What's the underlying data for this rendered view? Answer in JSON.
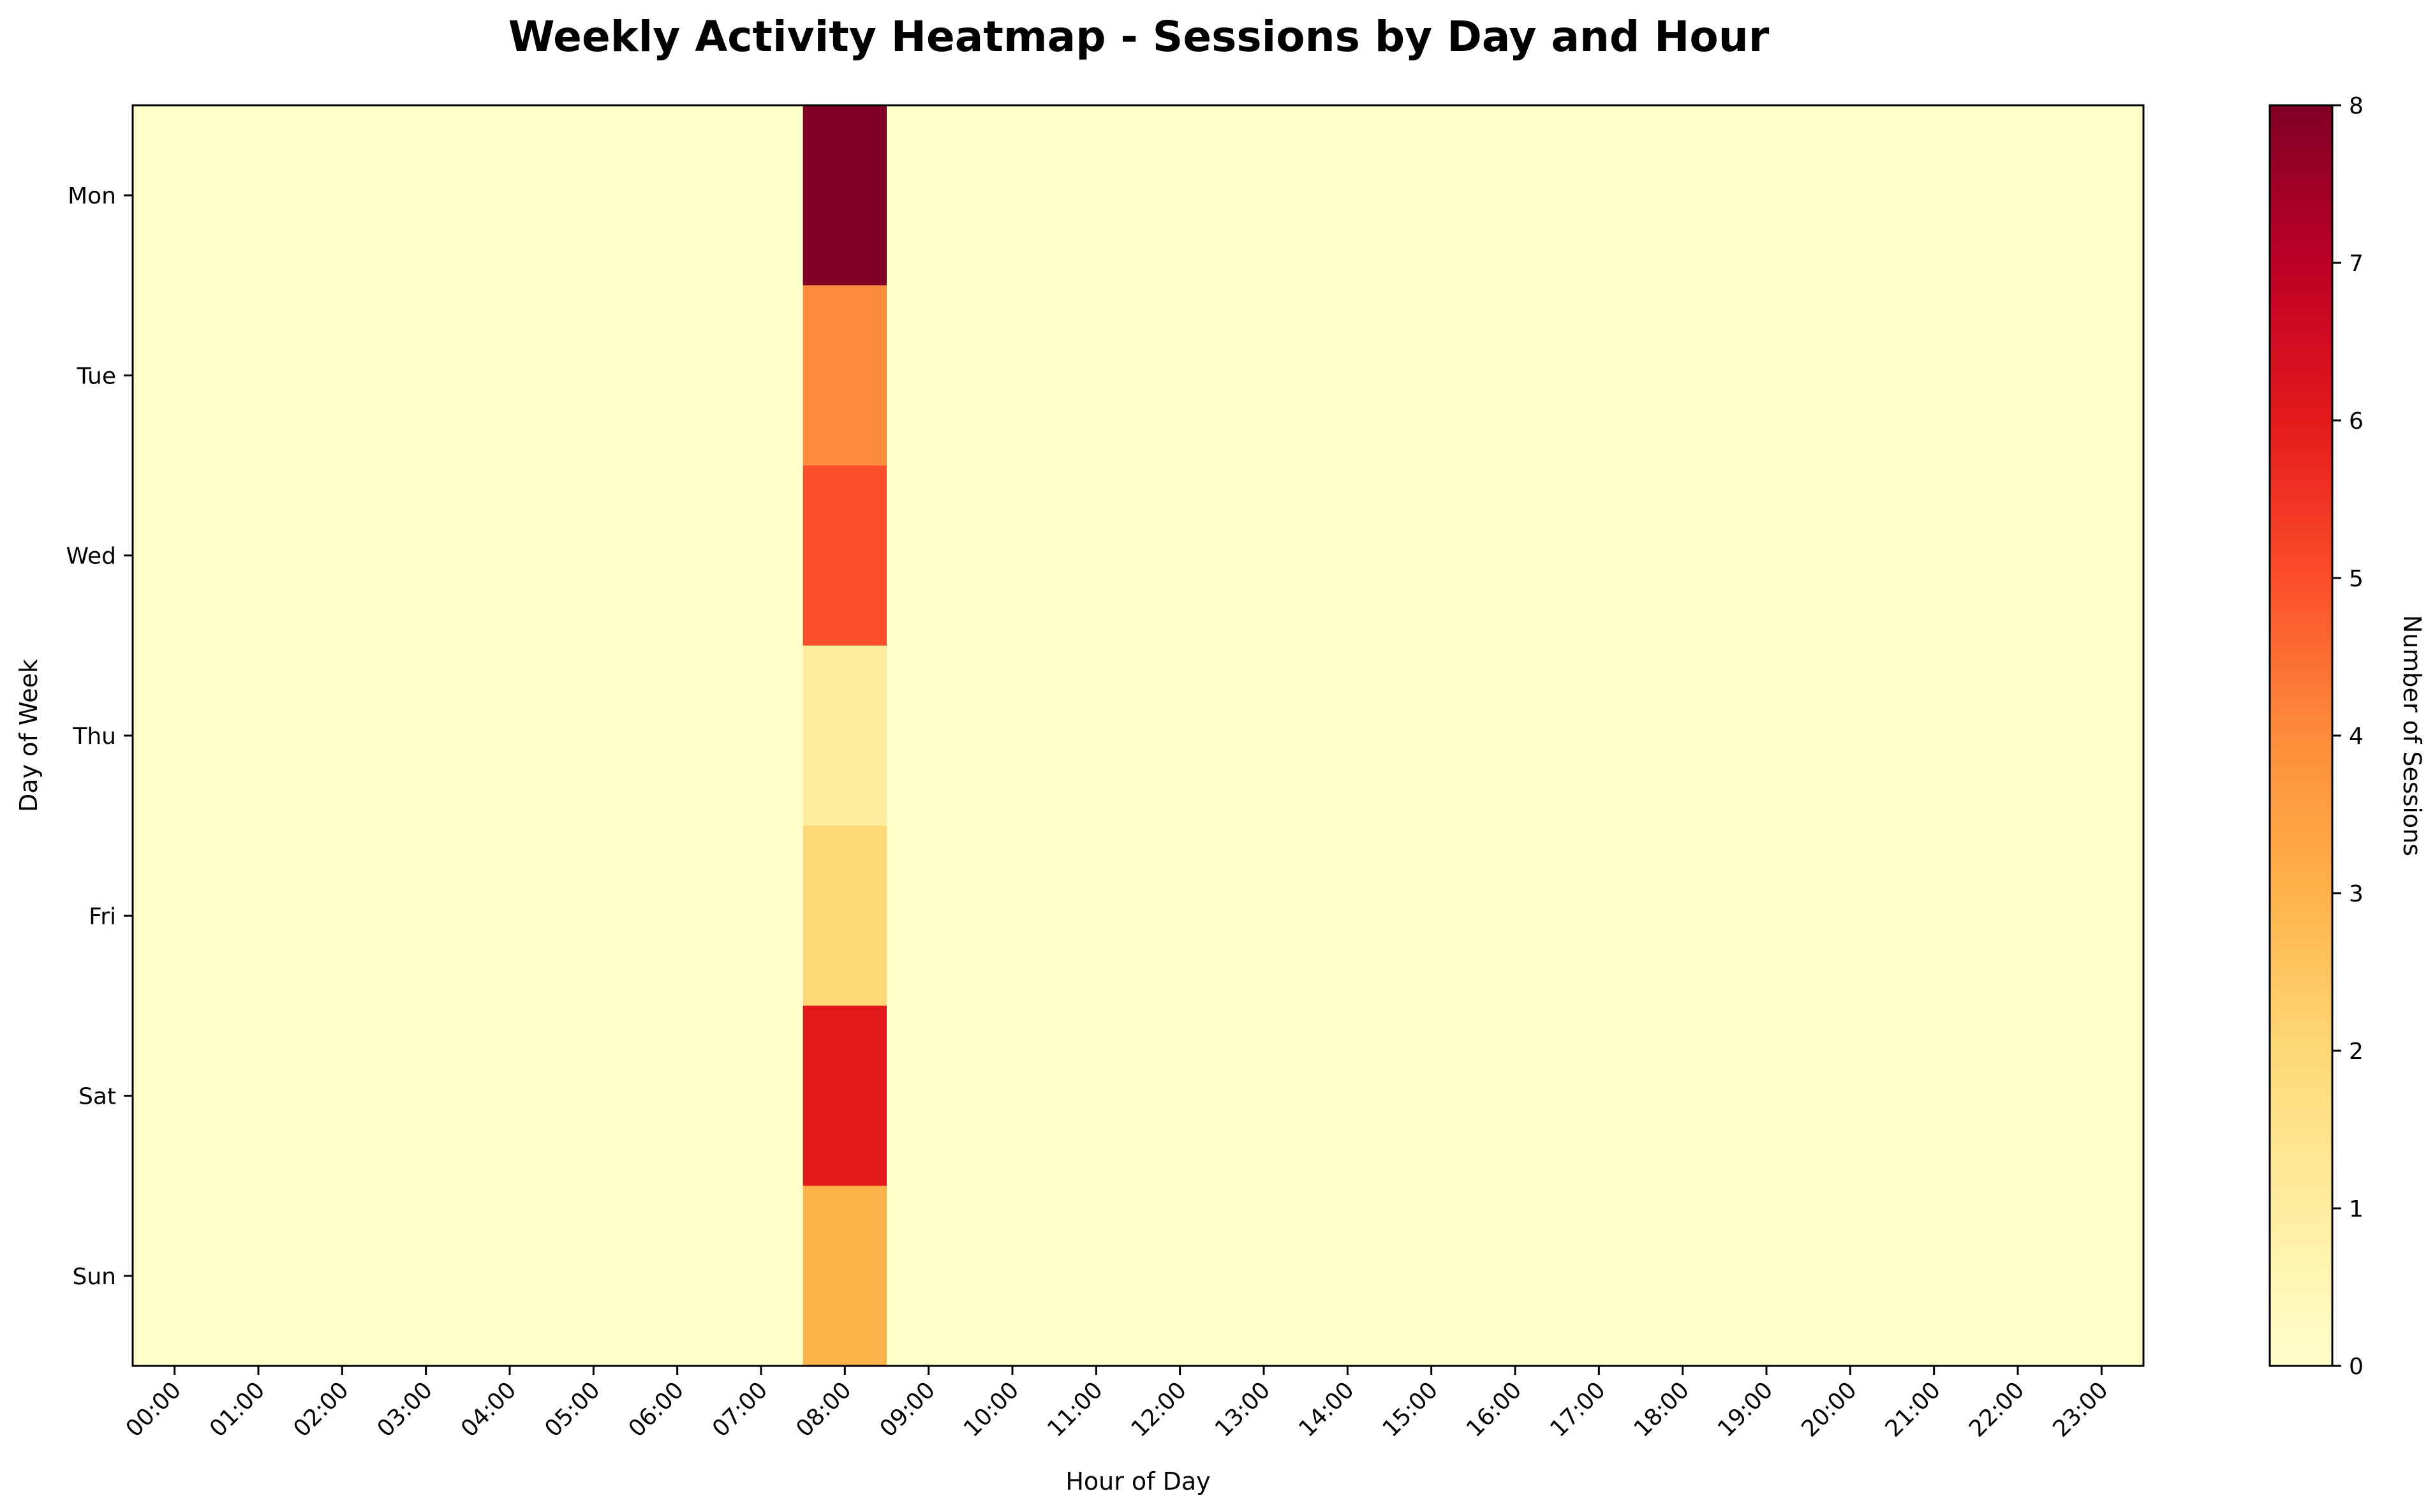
{
  "chart_data": {
    "type": "heatmap",
    "title": "Weekly Activity Heatmap - Sessions by Day and Hour",
    "xlabel": "Hour of Day",
    "ylabel": "Day of Week",
    "x": [
      "00:00",
      "01:00",
      "02:00",
      "03:00",
      "04:00",
      "05:00",
      "06:00",
      "07:00",
      "08:00",
      "09:00",
      "10:00",
      "11:00",
      "12:00",
      "13:00",
      "14:00",
      "15:00",
      "16:00",
      "17:00",
      "18:00",
      "19:00",
      "20:00",
      "21:00",
      "22:00",
      "23:00"
    ],
    "y": [
      "Mon",
      "Tue",
      "Wed",
      "Thu",
      "Fri",
      "Sat",
      "Sun"
    ],
    "values": [
      [
        0,
        0,
        0,
        0,
        0,
        0,
        0,
        0,
        8,
        0,
        0,
        0,
        0,
        0,
        0,
        0,
        0,
        0,
        0,
        0,
        0,
        0,
        0,
        0
      ],
      [
        0,
        0,
        0,
        0,
        0,
        0,
        0,
        0,
        4,
        0,
        0,
        0,
        0,
        0,
        0,
        0,
        0,
        0,
        0,
        0,
        0,
        0,
        0,
        0
      ],
      [
        0,
        0,
        0,
        0,
        0,
        0,
        0,
        0,
        5,
        0,
        0,
        0,
        0,
        0,
        0,
        0,
        0,
        0,
        0,
        0,
        0,
        0,
        0,
        0
      ],
      [
        0,
        0,
        0,
        0,
        0,
        0,
        0,
        0,
        1,
        0,
        0,
        0,
        0,
        0,
        0,
        0,
        0,
        0,
        0,
        0,
        0,
        0,
        0,
        0
      ],
      [
        0,
        0,
        0,
        0,
        0,
        0,
        0,
        0,
        2,
        0,
        0,
        0,
        0,
        0,
        0,
        0,
        0,
        0,
        0,
        0,
        0,
        0,
        0,
        0
      ],
      [
        0,
        0,
        0,
        0,
        0,
        0,
        0,
        0,
        6,
        0,
        0,
        0,
        0,
        0,
        0,
        0,
        0,
        0,
        0,
        0,
        0,
        0,
        0,
        0
      ],
      [
        0,
        0,
        0,
        0,
        0,
        0,
        0,
        0,
        3,
        0,
        0,
        0,
        0,
        0,
        0,
        0,
        0,
        0,
        0,
        0,
        0,
        0,
        0,
        0
      ]
    ],
    "colorbar": {
      "label": "Number of Sessions",
      "range": [
        0,
        8
      ],
      "ticks": [
        "0",
        "1",
        "2",
        "3",
        "4",
        "5",
        "6",
        "7",
        "8"
      ]
    },
    "colormap": "YlOrRd",
    "colormap_stops": [
      "#ffffcc",
      "#ffeda0",
      "#fed976",
      "#feb24c",
      "#fd8d3c",
      "#fc4e2a",
      "#e31a1c",
      "#bd0026",
      "#800026"
    ],
    "grid": false
  }
}
